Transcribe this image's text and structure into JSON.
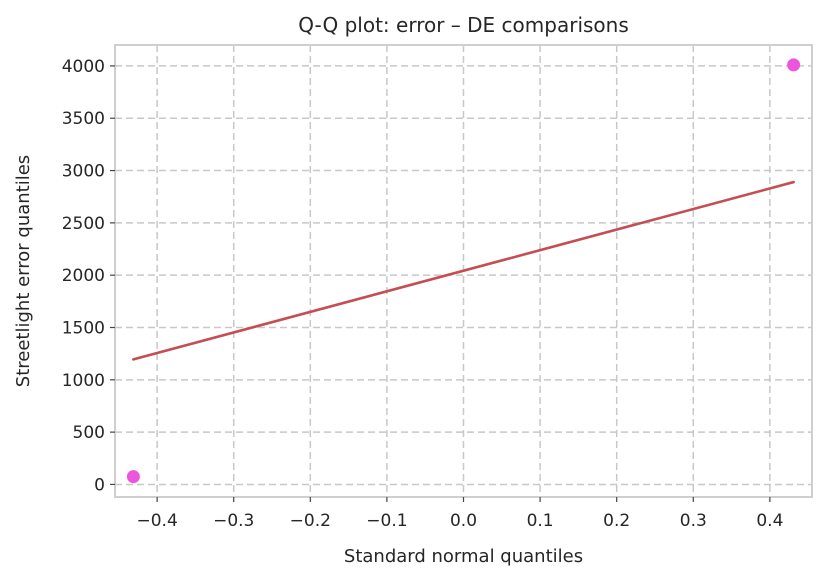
{
  "chart_data": {
    "type": "scatter",
    "title": "Q-Q plot: error – DE comparisons",
    "xlabel": "Standard normal quantiles",
    "ylabel": "Streetlight error quantiles",
    "xlim": [
      -0.455,
      0.455
    ],
    "ylim": [
      -120,
      4200
    ],
    "xticks": [
      -0.4,
      -0.3,
      -0.2,
      -0.1,
      0.0,
      0.1,
      0.2,
      0.3,
      0.4
    ],
    "xtick_labels": [
      "−0.4",
      "−0.3",
      "−0.2",
      "−0.1",
      "0.0",
      "0.1",
      "0.2",
      "0.3",
      "0.4"
    ],
    "yticks": [
      0,
      500,
      1000,
      1500,
      2000,
      2500,
      3000,
      3500,
      4000
    ],
    "ytick_labels": [
      "0",
      "500",
      "1000",
      "1500",
      "2000",
      "2500",
      "3000",
      "3500",
      "4000"
    ],
    "grid": true,
    "series": [
      {
        "type": "scatter",
        "color": "#ee55dd",
        "points": [
          {
            "x": -0.431,
            "y": 75
          },
          {
            "x": 0.431,
            "y": 4010
          }
        ]
      },
      {
        "type": "line",
        "color": "#c44e52",
        "points": [
          {
            "x": -0.431,
            "y": 1195
          },
          {
            "x": 0.431,
            "y": 2890
          }
        ]
      }
    ]
  }
}
